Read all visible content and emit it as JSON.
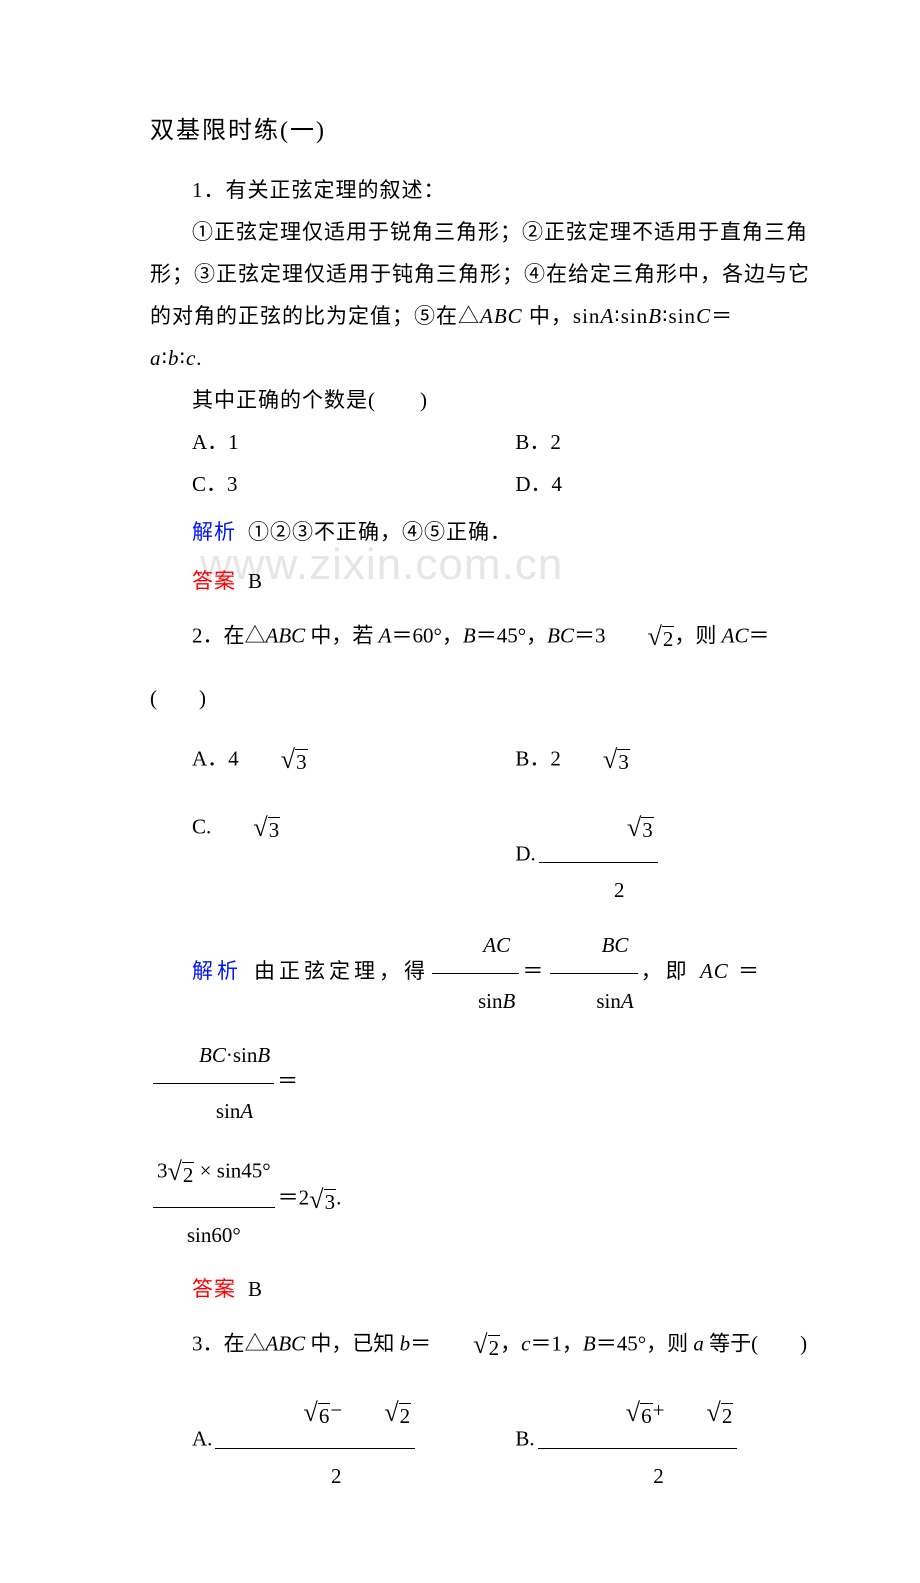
{
  "watermark": "www.zixin.com.cn",
  "title": "双基限时练(一)",
  "q1": {
    "lead": "1．有关正弦定理的叙述：",
    "body1": "①正弦定理仅适用于锐角三角形；②正弦定理不适用于直角三角",
    "body2_p1": "形；③正弦定理仅适用于钝角三角形；④在给定三角形中，各边与它",
    "body3_p1": "的对角的正弦的比为定值；⑤在△",
    "body3_p2": " 中，sin",
    "body3_p3": "sin",
    "body3_p4": "sin",
    "body3_p5": "＝",
    "body4_p1": ".",
    "ask": "其中正确的个数是(　　)",
    "A": "A．1",
    "B": "B．2",
    "C": "C．3",
    "D": "D．4",
    "jiexi_label": "解析",
    "jiexi_text": "①②③不正确，④⑤正确．",
    "daan_label": "答案",
    "daan_text": "B"
  },
  "q2": {
    "stem1": "2．在△",
    "stem2": "中，若 ",
    "stem3": "＝60°，",
    "stem4": "＝45°，",
    "stem5": "＝3",
    "stem6": "，则 ",
    "stem7": "＝(　　)",
    "A1": "A．4",
    "B1": "B．2",
    "C1": "C.",
    "D1": "D.",
    "jiexi_label": "解析",
    "jiexi1": "由正弦定理，得",
    "jiexi2": "＝",
    "jiexi3": "，即 ",
    "jiexi4": " ＝ ",
    "jiexi5": "＝",
    "jiexi6": "＝2",
    "daan_label": "答案",
    "daan_text": "B"
  },
  "q3": {
    "stem1": "3．在△",
    "stem2": "中，已知 ",
    "stem3": "＝",
    "stem4": "，",
    "stem5": "＝1，",
    "stem6": "＝45°，则 ",
    "stem7": " 等于(　　)",
    "A1": "A.",
    "B1": "B."
  },
  "math": {
    "ABC": "ABC",
    "A": "A",
    "B": "B",
    "C": "C",
    "a": "a",
    "b": "b",
    "c": "c",
    "AC": "AC",
    "BC": "BC",
    "sinA": "sin",
    "sinB": "sin",
    "sin45": " × sin45°",
    "sin60": "sin60°",
    "sqrt2": "2",
    "sqrt3": "3",
    "sqrt6": "6",
    "num3sqrt2": "3",
    "two": "2",
    "sqrt3_txt": "3",
    "bcDotSinB": "·sin"
  },
  "colors": {
    "jiexi": "#0016f2",
    "daan": "#ff0000",
    "text": "#000000",
    "bg": "#ffffff",
    "watermark": "#e6e6e6"
  }
}
